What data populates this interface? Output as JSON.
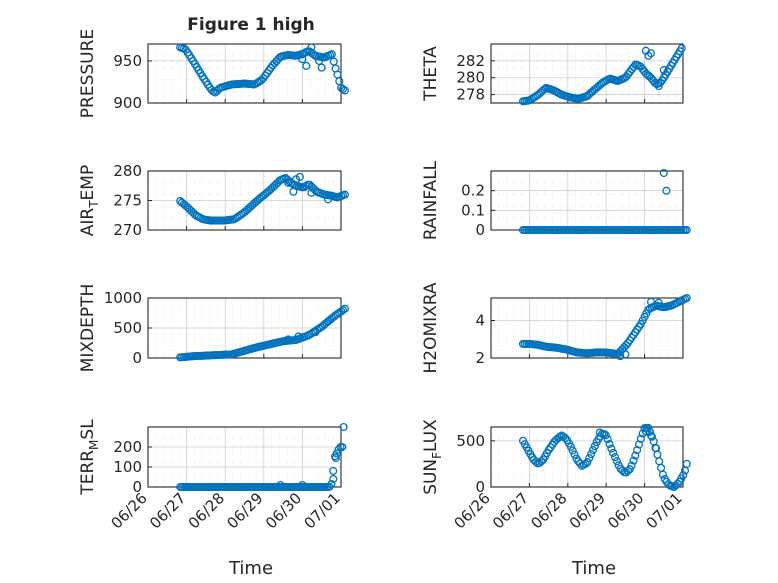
{
  "figure": {
    "title": "Figure 1 high",
    "xlabel": "Time"
  },
  "colors": {
    "marker": "#0072BD",
    "axis": "#262626",
    "grid": "#cfcfcf",
    "minor_grid": "#e4e4e4"
  },
  "chart_data": [
    {
      "type": "scatter",
      "ylabel": "PRESSURE",
      "ylim": [
        900,
        970
      ],
      "yticks": [
        "900",
        "950"
      ],
      "grid": "on",
      "keypoints": [
        [
          0.0,
          966
        ],
        [
          0.04,
          964
        ],
        [
          0.1,
          950
        ],
        [
          0.18,
          930
        ],
        [
          0.24,
          916
        ],
        [
          0.27,
          912
        ],
        [
          0.31,
          918
        ],
        [
          0.4,
          922
        ],
        [
          0.5,
          923
        ],
        [
          0.58,
          922
        ],
        [
          0.64,
          928
        ],
        [
          0.72,
          945
        ],
        [
          0.78,
          955
        ],
        [
          0.84,
          957
        ],
        [
          0.9,
          956
        ],
        [
          0.95,
          958
        ],
        [
          1.0,
          962
        ],
        [
          1.05,
          956
        ],
        [
          1.12,
          954
        ],
        [
          1.18,
          958
        ],
        [
          1.2,
          945
        ],
        [
          1.23,
          930
        ],
        [
          1.25,
          918
        ],
        [
          1.28,
          915
        ]
      ],
      "extra_points": [
        [
          0.95,
          952
        ],
        [
          0.98,
          944
        ],
        [
          1.02,
          966
        ],
        [
          1.08,
          950
        ],
        [
          1.1,
          942
        ]
      ]
    },
    {
      "type": "scatter",
      "ylabel": "THETA",
      "ylim": [
        277,
        284
      ],
      "yticks": [
        "278",
        "280",
        "282"
      ],
      "grid": "on",
      "keypoints": [
        [
          0.0,
          277.2
        ],
        [
          0.05,
          277.3
        ],
        [
          0.12,
          278.0
        ],
        [
          0.18,
          278.8
        ],
        [
          0.24,
          278.5
        ],
        [
          0.3,
          278.0
        ],
        [
          0.36,
          277.7
        ],
        [
          0.43,
          277.5
        ],
        [
          0.5,
          277.8
        ],
        [
          0.56,
          278.6
        ],
        [
          0.62,
          279.4
        ],
        [
          0.68,
          279.9
        ],
        [
          0.74,
          279.6
        ],
        [
          0.8,
          280.0
        ],
        [
          0.84,
          280.8
        ],
        [
          0.88,
          281.6
        ],
        [
          0.92,
          281.3
        ],
        [
          0.96,
          280.5
        ],
        [
          1.0,
          280.0
        ],
        [
          1.04,
          279.2
        ],
        [
          1.08,
          279.5
        ],
        [
          1.12,
          280.5
        ],
        [
          1.16,
          281.5
        ],
        [
          1.2,
          282.5
        ],
        [
          1.24,
          283.5
        ]
      ],
      "extra_points": [
        [
          0.96,
          283.2
        ],
        [
          0.98,
          282.6
        ],
        [
          1.0,
          282.9
        ],
        [
          1.06,
          279.0
        ],
        [
          1.1,
          280.9
        ]
      ]
    },
    {
      "type": "scatter",
      "ylabel": "AIR_TEMP",
      "ylim": [
        270,
        280
      ],
      "yticks": [
        "270",
        "275",
        "280"
      ],
      "grid": "on",
      "keypoints": [
        [
          0.0,
          274.9
        ],
        [
          0.05,
          274.0
        ],
        [
          0.12,
          272.5
        ],
        [
          0.18,
          271.8
        ],
        [
          0.24,
          271.6
        ],
        [
          0.34,
          271.6
        ],
        [
          0.42,
          271.8
        ],
        [
          0.5,
          273.0
        ],
        [
          0.6,
          275.0
        ],
        [
          0.7,
          276.8
        ],
        [
          0.78,
          278.5
        ],
        [
          0.82,
          278.8
        ],
        [
          0.86,
          278.0
        ],
        [
          0.9,
          277.5
        ],
        [
          0.96,
          277.2
        ],
        [
          1.0,
          277.8
        ],
        [
          1.06,
          276.5
        ],
        [
          1.12,
          276.0
        ],
        [
          1.18,
          275.8
        ],
        [
          1.22,
          275.5
        ],
        [
          1.28,
          276.0
        ]
      ],
      "extra_points": [
        [
          0.84,
          278.0
        ],
        [
          0.88,
          276.5
        ],
        [
          0.9,
          278.6
        ],
        [
          0.93,
          279.0
        ],
        [
          1.02,
          276.3
        ],
        [
          1.15,
          275.2
        ]
      ]
    },
    {
      "type": "scatter",
      "ylabel": "RAINFALL",
      "ylim": [
        0,
        0.3
      ],
      "yticks": [
        "0",
        "0.1",
        "0.2"
      ],
      "grid": "on",
      "keypoints": [
        [
          0.0,
          0
        ],
        [
          1.28,
          0
        ]
      ],
      "extra_points": [
        [
          1.1,
          0.29
        ],
        [
          1.12,
          0.2
        ]
      ]
    },
    {
      "type": "scatter",
      "ylabel": "MIXDEPTH",
      "ylim": [
        0,
        1000
      ],
      "yticks": [
        "0",
        "500",
        "1000"
      ],
      "grid": "on",
      "keypoints": [
        [
          0.0,
          10
        ],
        [
          0.1,
          30
        ],
        [
          0.2,
          40
        ],
        [
          0.3,
          50
        ],
        [
          0.4,
          60
        ],
        [
          0.5,
          120
        ],
        [
          0.6,
          180
        ],
        [
          0.7,
          230
        ],
        [
          0.8,
          280
        ],
        [
          0.9,
          300
        ],
        [
          1.0,
          380
        ],
        [
          1.1,
          520
        ],
        [
          1.2,
          700
        ],
        [
          1.28,
          820
        ]
      ],
      "extra_points": [
        [
          0.84,
          310
        ],
        [
          0.92,
          360
        ],
        [
          1.05,
          430
        ],
        [
          1.15,
          610
        ]
      ]
    },
    {
      "type": "scatter",
      "ylabel": "H2OMIXRA",
      "ylim": [
        2,
        5.2
      ],
      "yticks": [
        "2",
        "4"
      ],
      "grid": "on",
      "keypoints": [
        [
          0.0,
          2.75
        ],
        [
          0.05,
          2.75
        ],
        [
          0.12,
          2.7
        ],
        [
          0.18,
          2.6
        ],
        [
          0.26,
          2.55
        ],
        [
          0.34,
          2.45
        ],
        [
          0.42,
          2.3
        ],
        [
          0.5,
          2.25
        ],
        [
          0.58,
          2.3
        ],
        [
          0.64,
          2.3
        ],
        [
          0.7,
          2.25
        ],
        [
          0.74,
          2.2
        ],
        [
          0.78,
          2.5
        ],
        [
          0.82,
          2.8
        ],
        [
          0.86,
          3.2
        ],
        [
          0.92,
          3.8
        ],
        [
          0.98,
          4.6
        ],
        [
          1.04,
          4.8
        ],
        [
          1.1,
          4.7
        ],
        [
          1.16,
          4.8
        ],
        [
          1.22,
          5.0
        ],
        [
          1.28,
          5.2
        ]
      ],
      "extra_points": [
        [
          0.76,
          2.1
        ],
        [
          0.8,
          2.2
        ],
        [
          1.0,
          5.0
        ],
        [
          1.06,
          4.95
        ]
      ]
    },
    {
      "type": "scatter",
      "ylabel": "TERR_MSL",
      "ylim": [
        0,
        300
      ],
      "yticks": [
        "0",
        "100",
        "200"
      ],
      "grid": "on",
      "keypoints": [
        [
          0.0,
          0
        ],
        [
          1.16,
          0
        ],
        [
          1.18,
          20
        ],
        [
          1.2,
          150
        ],
        [
          1.22,
          170
        ],
        [
          1.24,
          200
        ],
        [
          1.26,
          200
        ]
      ],
      "extra_points": [
        [
          0.78,
          10
        ],
        [
          0.95,
          10
        ],
        [
          1.19,
          40
        ],
        [
          1.21,
          145
        ],
        [
          1.27,
          300
        ]
      ]
    },
    {
      "type": "scatter",
      "ylabel": "SUN_FLUX",
      "ylim": [
        0,
        650
      ],
      "yticks": [
        "0",
        "500"
      ],
      "grid": "on",
      "keypoints": [
        [
          0.0,
          500
        ],
        [
          0.04,
          400
        ],
        [
          0.08,
          300
        ],
        [
          0.12,
          250
        ],
        [
          0.16,
          300
        ],
        [
          0.2,
          400
        ],
        [
          0.25,
          500
        ],
        [
          0.3,
          560
        ],
        [
          0.34,
          520
        ],
        [
          0.38,
          420
        ],
        [
          0.42,
          300
        ],
        [
          0.46,
          230
        ],
        [
          0.5,
          260
        ],
        [
          0.54,
          380
        ],
        [
          0.58,
          500
        ],
        [
          0.62,
          580
        ],
        [
          0.65,
          560
        ],
        [
          0.68,
          450
        ],
        [
          0.72,
          320
        ],
        [
          0.76,
          200
        ],
        [
          0.8,
          150
        ],
        [
          0.84,
          200
        ],
        [
          0.88,
          350
        ],
        [
          0.92,
          520
        ],
        [
          0.95,
          640
        ],
        [
          0.98,
          640
        ],
        [
          1.02,
          500
        ],
        [
          1.06,
          300
        ],
        [
          1.1,
          100
        ],
        [
          1.14,
          20
        ],
        [
          1.18,
          0
        ],
        [
          1.22,
          50
        ],
        [
          1.26,
          150
        ],
        [
          1.28,
          250
        ]
      ],
      "extra_points": [
        [
          0.6,
          590
        ],
        [
          0.96,
          600
        ],
        [
          1.0,
          560
        ],
        [
          1.04,
          420
        ]
      ]
    }
  ],
  "xaxis": {
    "tick_labels": [
      "06/26",
      "06/27",
      "06/28",
      "06/29",
      "06/30",
      "07/01"
    ],
    "tick_values": [
      -0.25,
      0.05,
      0.35,
      0.65,
      0.95,
      1.25
    ]
  }
}
